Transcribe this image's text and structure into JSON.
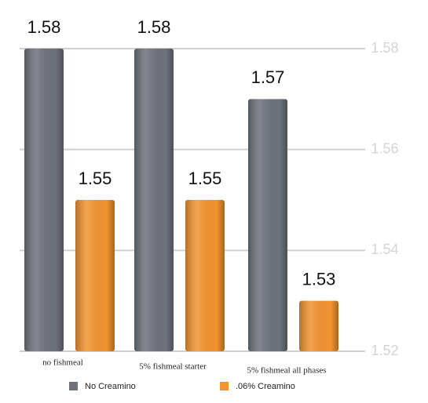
{
  "chart_data": {
    "type": "bar",
    "categories": [
      "no fishmeal",
      "5% fishmeal starter",
      "5% fishmeal all phases"
    ],
    "series": [
      {
        "name": "No Creamino",
        "color": "#6e727b",
        "values": [
          1.58,
          1.58,
          1.57
        ]
      },
      {
        "name": ".06% Creamino",
        "color": "#f2932f",
        "values": [
          1.55,
          1.55,
          1.53
        ]
      }
    ],
    "ylim": [
      1.52,
      1.58
    ],
    "yticks": [
      1.52,
      1.54,
      1.56,
      1.58
    ],
    "grid": true
  }
}
